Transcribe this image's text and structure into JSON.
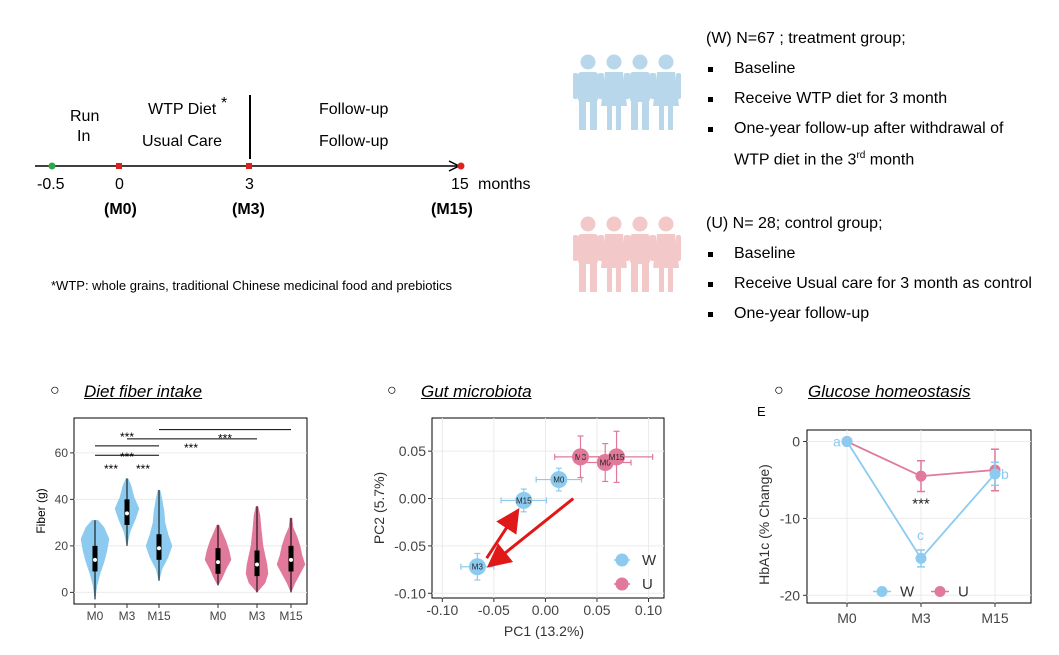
{
  "timeline": {
    "run_in": "Run",
    "run_in2": "In",
    "wtp_diet": "WTP Diet",
    "asterisk": "*",
    "usual_care": "Usual Care",
    "followup_top": "Follow-up",
    "followup_bottom": "Follow-up",
    "ticks": [
      "-0.5",
      "0",
      "3",
      "15"
    ],
    "months_label": "months",
    "visit_labels": [
      "(M0)",
      "(M3)",
      "(M15)"
    ],
    "footnote": "*WTP: whole grains, traditional Chinese medicinal food and prebiotics",
    "colors": {
      "run_in": "#2ca84a",
      "visit": "#e02020",
      "end": "#e02020"
    }
  },
  "groups": {
    "w": {
      "header": "(W) N=67 ; treatment group;",
      "items": [
        "Baseline",
        "Receive WTP diet for 3 month",
        "One-year follow-up after withdrawal of",
        "WTP diet in the 3"
      ],
      "sup": "rd",
      "tail": " month",
      "icon_color": "#b9d7ea"
    },
    "u": {
      "header": "(U) N= 28; control group;",
      "items": [
        "Baseline",
        "Receive Usual care for 3 month as control",
        "One-year follow-up"
      ],
      "icon_color": "#f3c8c8"
    }
  },
  "sections": {
    "diet": "Diet fiber intake",
    "gut": "Gut microbiota",
    "glucose": "Glucose homeostasis"
  },
  "chart_data": [
    {
      "type": "violin",
      "title": "Diet fiber intake",
      "ylabel": "Fiber (g)",
      "yticks": [
        "0",
        "20",
        "40",
        "60"
      ],
      "ylim": [
        -5,
        75
      ],
      "categories": [
        "M0",
        "M3",
        "M15",
        "M0",
        "M3",
        "M15"
      ],
      "series": [
        {
          "name": "W",
          "color": "#8ccbef",
          "medians": [
            14,
            34,
            19
          ]
        },
        {
          "name": "U",
          "color": "#e0799a",
          "medians": [
            13,
            12,
            14
          ]
        }
      ],
      "significance": [
        "***",
        "***",
        "***",
        "***",
        "***",
        "***"
      ]
    },
    {
      "type": "scatter",
      "title": "Gut microbiota",
      "xlabel": "PC1 (13.2%)",
      "ylabel": "PC2 (5.7%)",
      "xticks": [
        "-0.10",
        "-0.05",
        "0.00",
        "0.05",
        "0.10"
      ],
      "yticks": [
        "0.05",
        "0.00",
        "-0.05",
        "-0.10"
      ],
      "xlim": [
        -0.11,
        0.115
      ],
      "ylim": [
        -0.105,
        0.085
      ],
      "series": [
        {
          "name": "W",
          "color": "#8ccbef",
          "points": [
            {
              "label": "M0",
              "x": 0.013,
              "y": 0.02,
              "ex": 0.022,
              "ey": 0.012
            },
            {
              "label": "M3",
              "x": -0.066,
              "y": -0.072,
              "ex": 0.016,
              "ey": 0.014
            },
            {
              "label": "M15",
              "x": -0.021,
              "y": -0.002,
              "ex": 0.022,
              "ey": 0.012
            }
          ]
        },
        {
          "name": "U",
          "color": "#e0799a",
          "points": [
            {
              "label": "M3",
              "x": 0.034,
              "y": 0.044,
              "ex": 0.025,
              "ey": 0.022
            },
            {
              "label": "M0",
              "x": 0.058,
              "y": 0.038,
              "ex": 0.025,
              "ey": 0.02
            },
            {
              "label": "M15",
              "x": 0.069,
              "y": 0.044,
              "ex": 0.035,
              "ey": 0.027
            }
          ]
        }
      ],
      "legend": [
        "W",
        "U"
      ]
    },
    {
      "type": "line",
      "title": "Glucose homeostasis",
      "panel_letter": "E",
      "ylabel": "HbA1c (% Change)",
      "categories": [
        "M0",
        "M3",
        "M15"
      ],
      "yticks": [
        "0",
        "-10",
        "-20"
      ],
      "ylim": [
        -21,
        1.5
      ],
      "series": [
        {
          "name": "W",
          "color": "#8ccbef",
          "values": [
            0,
            -15.2,
            -4.2
          ],
          "err": [
            0,
            1.1,
            1.5
          ],
          "letters": [
            "a",
            "c",
            "b"
          ]
        },
        {
          "name": "U",
          "color": "#e0799a",
          "values": [
            0,
            -4.5,
            -3.7
          ],
          "err": [
            0,
            2.0,
            2.7
          ]
        }
      ],
      "annotation": "***",
      "legend": [
        "W",
        "U"
      ]
    }
  ]
}
